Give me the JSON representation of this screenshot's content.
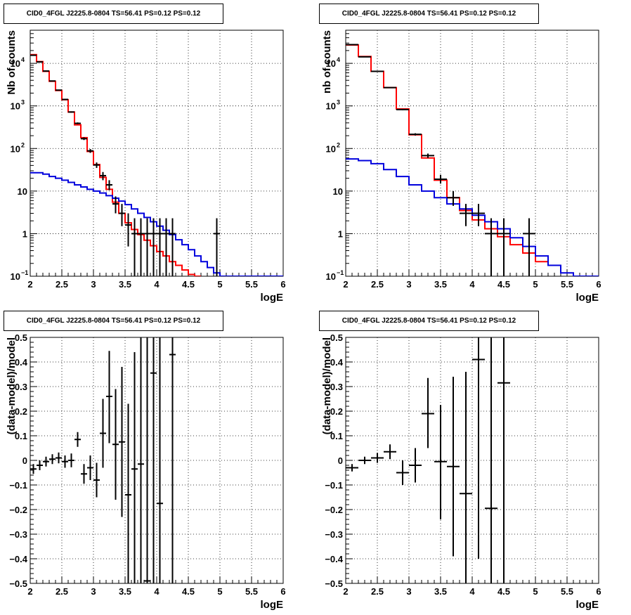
{
  "chart_data": [
    {
      "type": "step-histogram",
      "title": "CID0_4FGL J2225.8-0804 TS=56.41 PS=0.12 PS=0.12",
      "xlabel": "logE",
      "ylabel": "Nb of counts",
      "xlim": [
        2,
        6
      ],
      "ylim": [
        0.1,
        60000
      ],
      "yscale": "log",
      "grid": true,
      "x_ticks": [
        "2",
        "2.5",
        "3",
        "3.5",
        "4",
        "4.5",
        "5",
        "5.5",
        "6"
      ],
      "y_ticks": [
        "10^-1",
        "1",
        "10",
        "10^2",
        "10^3",
        "10^4"
      ],
      "bin_width": 0.1,
      "bins_lo": [
        2.0,
        2.1,
        2.2,
        2.3,
        2.4,
        2.5,
        2.6,
        2.7,
        2.8,
        2.9,
        3.0,
        3.1,
        3.2,
        3.3,
        3.4,
        3.5,
        3.6,
        3.7,
        3.8,
        3.9,
        4.0,
        4.1,
        4.2,
        4.3,
        4.4,
        4.5,
        4.6,
        4.7,
        4.8,
        4.9,
        5.0,
        5.1,
        5.2,
        5.3,
        5.4,
        5.5,
        5.6,
        5.7,
        5.8,
        5.9
      ],
      "series": [
        {
          "color": "#ff0000",
          "values": [
            16000,
            11000,
            6500,
            3800,
            2300,
            1400,
            720,
            360,
            180,
            85,
            42,
            21,
            11,
            5.5,
            3.0,
            1.8,
            1.25,
            0.95,
            0.7,
            0.52,
            0.38,
            0.3,
            0.22,
            0.18,
            0.14,
            0.11,
            0.08
          ]
        },
        {
          "color": "#0000dd",
          "values": [
            27,
            27,
            25,
            22,
            20,
            18,
            16,
            14,
            12.5,
            11,
            10,
            9,
            7.8,
            6.8,
            5.8,
            4.8,
            3.8,
            3.0,
            2.4,
            1.9,
            1.5,
            1.2,
            0.95,
            0.72,
            0.55,
            0.42,
            0.3,
            0.22,
            0.16,
            0.12,
            0.1,
            0.1,
            0.1,
            0.1,
            0.1,
            0.1,
            0.1,
            0.1,
            0.1,
            0.1
          ]
        }
      ],
      "points": [
        {
          "x": 2.05,
          "y": 15500,
          "lo": 15300,
          "hi": 15700
        },
        {
          "x": 2.15,
          "y": 10800,
          "lo": 10600,
          "hi": 11000
        },
        {
          "x": 2.25,
          "y": 6600,
          "lo": 6500,
          "hi": 6700
        },
        {
          "x": 2.35,
          "y": 3850,
          "lo": 3780,
          "hi": 3920
        },
        {
          "x": 2.45,
          "y": 2350,
          "lo": 2300,
          "hi": 2400
        },
        {
          "x": 2.55,
          "y": 1420,
          "lo": 1380,
          "hi": 1460
        },
        {
          "x": 2.65,
          "y": 720,
          "lo": 695,
          "hi": 745
        },
        {
          "x": 2.75,
          "y": 390,
          "lo": 372,
          "hi": 410
        },
        {
          "x": 2.85,
          "y": 170,
          "lo": 158,
          "hi": 183
        },
        {
          "x": 2.95,
          "y": 88,
          "lo": 79,
          "hi": 97
        },
        {
          "x": 3.05,
          "y": 41,
          "lo": 35,
          "hi": 47
        },
        {
          "x": 3.15,
          "y": 23,
          "lo": 18,
          "hi": 28
        },
        {
          "x": 3.25,
          "y": 14,
          "lo": 10.5,
          "hi": 18
        },
        {
          "x": 3.35,
          "y": 5,
          "lo": 3,
          "hi": 7.5
        },
        {
          "x": 3.45,
          "y": 3,
          "lo": 1.5,
          "hi": 5
        },
        {
          "x": 3.55,
          "y": 1.6,
          "lo": 0.5,
          "hi": 3
        },
        {
          "x": 3.65,
          "y": 1,
          "lo": 0.1,
          "hi": 2.3
        },
        {
          "x": 3.75,
          "y": 1,
          "lo": 0.1,
          "hi": 2.3
        },
        {
          "x": 3.85,
          "y": 1,
          "lo": 0.1,
          "hi": 2.3
        },
        {
          "x": 3.95,
          "y": 1,
          "lo": 0.1,
          "hi": 2.3
        },
        {
          "x": 4.05,
          "y": 1,
          "lo": 0.1,
          "hi": 2.3
        },
        {
          "x": 4.15,
          "y": 1,
          "lo": 0.1,
          "hi": 2.3
        },
        {
          "x": 4.25,
          "y": 1,
          "lo": 0.1,
          "hi": 2.3
        },
        {
          "x": 4.95,
          "y": 1,
          "lo": 0.1,
          "hi": 2.3
        }
      ]
    },
    {
      "type": "step-histogram",
      "title": "CID0_4FGL J2225.8-0804 TS=56.41 PS=0.12 PS=0.12",
      "xlabel": "logE",
      "ylabel": "nb of counts",
      "xlim": [
        2,
        6
      ],
      "ylim": [
        0.1,
        60000
      ],
      "yscale": "log",
      "grid": true,
      "x_ticks": [
        "2",
        "2.5",
        "3",
        "3.5",
        "4",
        "4.5",
        "5",
        "5.5",
        "6"
      ],
      "y_ticks": [
        "10^-1",
        "1",
        "10",
        "10^2",
        "10^3",
        "10^4"
      ],
      "bin_width": 0.2,
      "bins_lo": [
        2.0,
        2.2,
        2.4,
        2.6,
        2.8,
        3.0,
        3.2,
        3.4,
        3.6,
        3.8,
        4.0,
        4.2,
        4.4,
        4.6,
        4.8,
        5.0,
        5.2,
        5.4,
        5.6,
        5.8
      ],
      "series": [
        {
          "color": "#ff0000",
          "values": [
            27000,
            14500,
            6500,
            2700,
            850,
            210,
            60,
            18,
            7,
            3.5,
            2.1,
            1.3,
            0.85,
            0.55,
            0.35,
            0.22
          ]
        },
        {
          "color": "#0000dd",
          "values": [
            57,
            52,
            44,
            32,
            22,
            14,
            10,
            7,
            5,
            3.8,
            2.7,
            1.9,
            1.3,
            0.8,
            0.5,
            0.3,
            0.18,
            0.12,
            0.1,
            0.1
          ]
        }
      ],
      "points": [
        {
          "x": 2.1,
          "y": 27500,
          "lo": 27200,
          "hi": 27800
        },
        {
          "x": 2.3,
          "y": 14200,
          "lo": 14000,
          "hi": 14400
        },
        {
          "x": 2.5,
          "y": 6500,
          "lo": 6400,
          "hi": 6600
        },
        {
          "x": 2.7,
          "y": 2700,
          "lo": 2650,
          "hi": 2750
        },
        {
          "x": 2.9,
          "y": 820,
          "lo": 795,
          "hi": 845
        },
        {
          "x": 3.1,
          "y": 215,
          "lo": 202,
          "hi": 228
        },
        {
          "x": 3.3,
          "y": 68,
          "lo": 60,
          "hi": 76
        },
        {
          "x": 3.5,
          "y": 19,
          "lo": 15,
          "hi": 24
        },
        {
          "x": 3.7,
          "y": 7,
          "lo": 4.5,
          "hi": 10
        },
        {
          "x": 3.9,
          "y": 3,
          "lo": 1.5,
          "hi": 5
        },
        {
          "x": 4.1,
          "y": 3,
          "lo": 1.5,
          "hi": 5
        },
        {
          "x": 4.3,
          "y": 1,
          "lo": 0.1,
          "hi": 2.3
        },
        {
          "x": 4.5,
          "y": 1,
          "lo": 0.1,
          "hi": 2.3
        },
        {
          "x": 4.9,
          "y": 1,
          "lo": 0.1,
          "hi": 2.3
        }
      ]
    },
    {
      "type": "scatter-errorbar",
      "title": "CID0_4FGL J2225.8-0804 TS=56.41 PS=0.12 PS=0.12",
      "xlabel": "logE",
      "ylabel": "(data-model)/model",
      "xlim": [
        2,
        6
      ],
      "ylim": [
        -0.5,
        0.5
      ],
      "grid": true,
      "x_ticks": [
        "2",
        "2.5",
        "3",
        "3.5",
        "4",
        "4.5",
        "5",
        "5.5",
        "6"
      ],
      "y_ticks": [
        "-0.5",
        "-0.4",
        "-0.3",
        "-0.2",
        "-0.1",
        "0",
        "0.1",
        "0.2",
        "0.3",
        "0.4",
        "0.5"
      ],
      "bin_width": 0.1,
      "points": [
        {
          "x": 2.05,
          "y": -0.035,
          "lo": -0.055,
          "hi": -0.015
        },
        {
          "x": 2.15,
          "y": -0.02,
          "lo": -0.04,
          "hi": 0.0
        },
        {
          "x": 2.25,
          "y": -0.005,
          "lo": -0.025,
          "hi": 0.015
        },
        {
          "x": 2.35,
          "y": 0.005,
          "lo": -0.015,
          "hi": 0.025
        },
        {
          "x": 2.45,
          "y": 0.01,
          "lo": -0.012,
          "hi": 0.032
        },
        {
          "x": 2.55,
          "y": -0.005,
          "lo": -0.03,
          "hi": 0.02
        },
        {
          "x": 2.65,
          "y": 0.0,
          "lo": -0.028,
          "hi": 0.028
        },
        {
          "x": 2.75,
          "y": 0.085,
          "lo": 0.055,
          "hi": 0.115
        },
        {
          "x": 2.85,
          "y": -0.055,
          "lo": -0.095,
          "hi": -0.015
        },
        {
          "x": 2.95,
          "y": -0.03,
          "lo": -0.08,
          "hi": 0.02
        },
        {
          "x": 3.05,
          "y": -0.08,
          "lo": -0.15,
          "hi": -0.01
        },
        {
          "x": 3.15,
          "y": 0.11,
          "lo": -0.03,
          "hi": 0.25
        },
        {
          "x": 3.25,
          "y": 0.26,
          "lo": 0.07,
          "hi": 0.445
        },
        {
          "x": 3.35,
          "y": 0.065,
          "lo": -0.16,
          "hi": 0.29
        },
        {
          "x": 3.45,
          "y": 0.075,
          "lo": -0.23,
          "hi": 0.38
        },
        {
          "x": 3.55,
          "y": -0.14,
          "lo": -0.5,
          "hi": 0.23
        },
        {
          "x": 3.65,
          "y": -0.035,
          "lo": -0.5,
          "hi": 0.44
        },
        {
          "x": 3.75,
          "y": -0.015,
          "lo": -0.5,
          "hi": 0.5
        },
        {
          "x": 3.85,
          "y": -0.49,
          "lo": -0.5,
          "hi": 0.5
        },
        {
          "x": 3.95,
          "y": 0.355,
          "lo": -0.5,
          "hi": 0.5
        },
        {
          "x": 4.05,
          "y": -0.175,
          "lo": -0.5,
          "hi": 0.5
        },
        {
          "x": 4.25,
          "y": 0.43,
          "lo": -0.5,
          "hi": 0.5
        }
      ]
    },
    {
      "type": "scatter-errorbar",
      "title": "CID0_4FGL J2225.8-0804 TS=56.41 PS=0.12 PS=0.12",
      "xlabel": "logE",
      "ylabel": "(data-model)/model",
      "xlim": [
        2,
        6
      ],
      "ylim": [
        -0.5,
        0.5
      ],
      "grid": true,
      "x_ticks": [
        "2",
        "2.5",
        "3",
        "3.5",
        "4",
        "4.5",
        "5",
        "5.5",
        "6"
      ],
      "y_ticks": [
        "-0.5",
        "-0.4",
        "-0.3",
        "-0.2",
        "-0.1",
        "0",
        "0.1",
        "0.2",
        "0.3",
        "0.4",
        "0.5"
      ],
      "bin_width": 0.2,
      "points": [
        {
          "x": 2.1,
          "y": -0.03,
          "lo": -0.045,
          "hi": -0.015
        },
        {
          "x": 2.3,
          "y": 0.0,
          "lo": -0.015,
          "hi": 0.015
        },
        {
          "x": 2.5,
          "y": 0.01,
          "lo": -0.01,
          "hi": 0.03
        },
        {
          "x": 2.7,
          "y": 0.035,
          "lo": 0.005,
          "hi": 0.065
        },
        {
          "x": 2.9,
          "y": -0.05,
          "lo": -0.1,
          "hi": 0.0
        },
        {
          "x": 3.1,
          "y": -0.02,
          "lo": -0.09,
          "hi": 0.05
        },
        {
          "x": 3.3,
          "y": 0.19,
          "lo": 0.05,
          "hi": 0.335
        },
        {
          "x": 3.5,
          "y": -0.005,
          "lo": -0.24,
          "hi": 0.225
        },
        {
          "x": 3.7,
          "y": -0.025,
          "lo": -0.39,
          "hi": 0.34
        },
        {
          "x": 3.9,
          "y": -0.135,
          "lo": -0.5,
          "hi": 0.36
        },
        {
          "x": 4.1,
          "y": 0.41,
          "lo": -0.4,
          "hi": 0.5
        },
        {
          "x": 4.3,
          "y": -0.195,
          "lo": -0.5,
          "hi": 0.5
        },
        {
          "x": 4.5,
          "y": 0.315,
          "lo": -0.5,
          "hi": 0.5
        }
      ]
    }
  ]
}
